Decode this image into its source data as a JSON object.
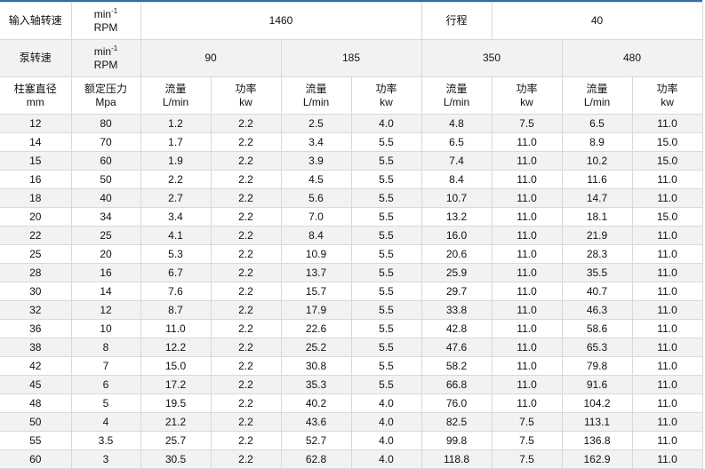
{
  "header": {
    "input_speed_label": "输入轴转速",
    "unit_min": "min",
    "unit_exp": "-1",
    "unit_rpm": "RPM",
    "input_speed_value": "1460",
    "stroke_label": "行程",
    "stroke_value": "40",
    "pump_speed_label": "泵转速",
    "pump_speeds": [
      "90",
      "185",
      "350",
      "480"
    ],
    "plunger_label": "柱塞直径",
    "plunger_unit": "mm",
    "pressure_label": "额定压力",
    "pressure_unit": "Mpa",
    "flow_label": "流量",
    "flow_unit": "L/min",
    "power_label": "功率",
    "power_unit": "kw"
  },
  "rows": [
    [
      "12",
      "80",
      "1.2",
      "2.2",
      "2.5",
      "4.0",
      "4.8",
      "7.5",
      "6.5",
      "11.0"
    ],
    [
      "14",
      "70",
      "1.7",
      "2.2",
      "3.4",
      "5.5",
      "6.5",
      "11.0",
      "8.9",
      "15.0"
    ],
    [
      "15",
      "60",
      "1.9",
      "2.2",
      "3.9",
      "5.5",
      "7.4",
      "11.0",
      "10.2",
      "15.0"
    ],
    [
      "16",
      "50",
      "2.2",
      "2.2",
      "4.5",
      "5.5",
      "8.4",
      "11.0",
      "11.6",
      "11.0"
    ],
    [
      "18",
      "40",
      "2.7",
      "2.2",
      "5.6",
      "5.5",
      "10.7",
      "11.0",
      "14.7",
      "11.0"
    ],
    [
      "20",
      "34",
      "3.4",
      "2.2",
      "7.0",
      "5.5",
      "13.2",
      "11.0",
      "18.1",
      "15.0"
    ],
    [
      "22",
      "25",
      "4.1",
      "2.2",
      "8.4",
      "5.5",
      "16.0",
      "11.0",
      "21.9",
      "11.0"
    ],
    [
      "25",
      "20",
      "5.3",
      "2.2",
      "10.9",
      "5.5",
      "20.6",
      "11.0",
      "28.3",
      "11.0"
    ],
    [
      "28",
      "16",
      "6.7",
      "2.2",
      "13.7",
      "5.5",
      "25.9",
      "11.0",
      "35.5",
      "11.0"
    ],
    [
      "30",
      "14",
      "7.6",
      "2.2",
      "15.7",
      "5.5",
      "29.7",
      "11.0",
      "40.7",
      "11.0"
    ],
    [
      "32",
      "12",
      "8.7",
      "2.2",
      "17.9",
      "5.5",
      "33.8",
      "11.0",
      "46.3",
      "11.0"
    ],
    [
      "36",
      "10",
      "11.0",
      "2.2",
      "22.6",
      "5.5",
      "42.8",
      "11.0",
      "58.6",
      "11.0"
    ],
    [
      "38",
      "8",
      "12.2",
      "2.2",
      "25.2",
      "5.5",
      "47.6",
      "11.0",
      "65.3",
      "11.0"
    ],
    [
      "42",
      "7",
      "15.0",
      "2.2",
      "30.8",
      "5.5",
      "58.2",
      "11.0",
      "79.8",
      "11.0"
    ],
    [
      "45",
      "6",
      "17.2",
      "2.2",
      "35.3",
      "5.5",
      "66.8",
      "11.0",
      "91.6",
      "11.0"
    ],
    [
      "48",
      "5",
      "19.5",
      "2.2",
      "40.2",
      "4.0",
      "76.0",
      "11.0",
      "104.2",
      "11.0"
    ],
    [
      "50",
      "4",
      "21.2",
      "2.2",
      "43.6",
      "4.0",
      "82.5",
      "7.5",
      "113.1",
      "11.0"
    ],
    [
      "55",
      "3.5",
      "25.7",
      "2.2",
      "52.7",
      "4.0",
      "99.8",
      "7.5",
      "136.8",
      "11.0"
    ],
    [
      "60",
      "3",
      "30.5",
      "2.2",
      "62.8",
      "4.0",
      "118.8",
      "7.5",
      "162.9",
      "11.0"
    ]
  ],
  "colors": {
    "accent_border": "#2f6db0",
    "stripe": "#f2f2f2",
    "grid": "#d9d9d9"
  }
}
